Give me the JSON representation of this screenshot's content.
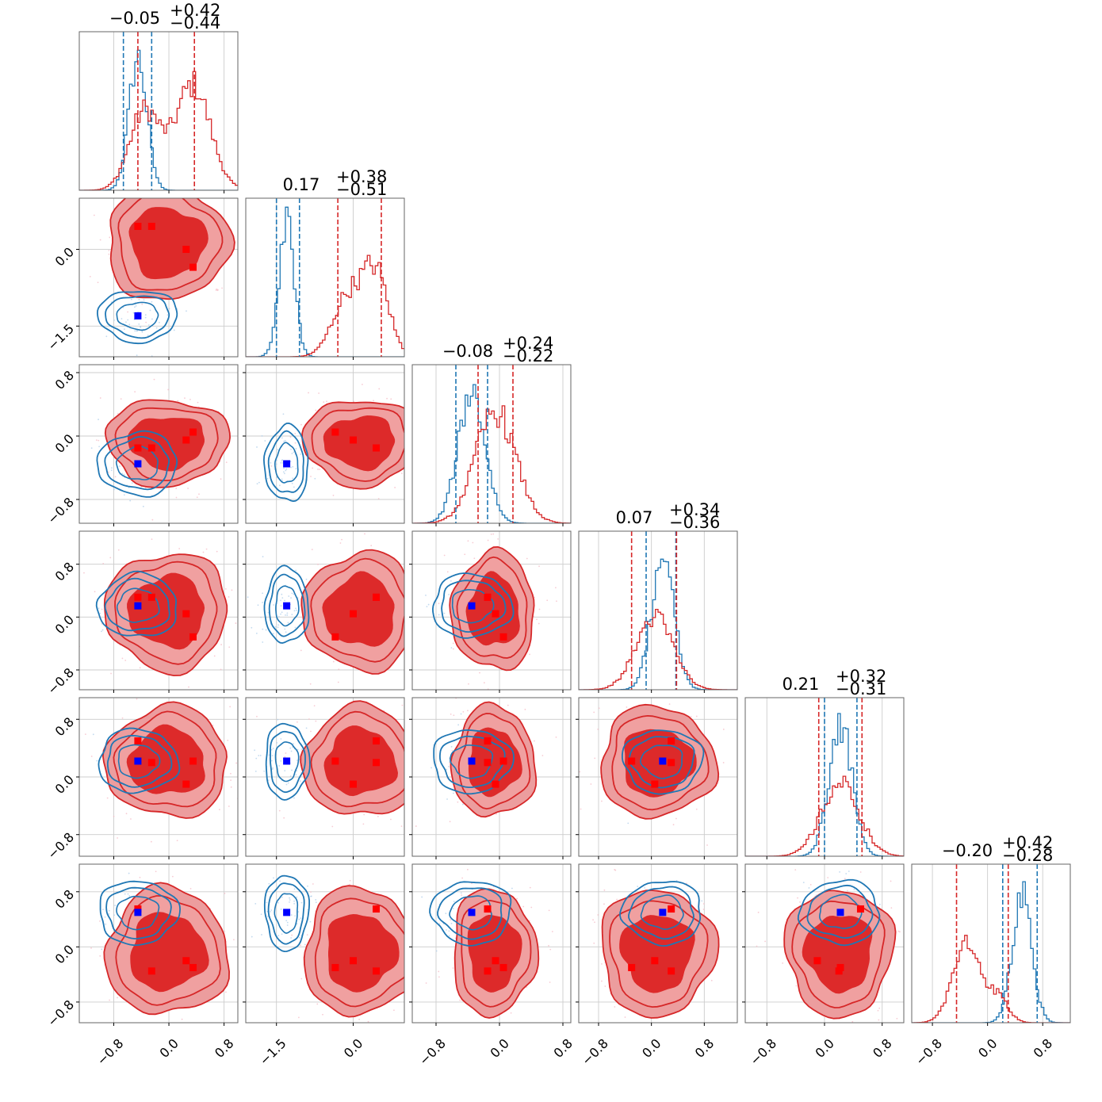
{
  "chart_data": {
    "type": "corner",
    "n_params": 6,
    "grid": true,
    "colors": {
      "blue": "#1f77b4",
      "red": "#d62728",
      "marker_blue": "#0000ff",
      "marker_red": "#ff0000"
    },
    "titles": [
      {
        "value": "−0.05",
        "plus": "+0.42",
        "minus": "−0.44"
      },
      {
        "value": "0.17",
        "plus": "+0.38",
        "minus": "−0.51"
      },
      {
        "value": "−0.08",
        "plus": "+0.24",
        "minus": "−0.22"
      },
      {
        "value": "0.07",
        "plus": "+0.34",
        "minus": "−0.36"
      },
      {
        "value": "0.21",
        "plus": "+0.32",
        "minus": "−0.31"
      },
      {
        "value": "−0.20",
        "plus": "+0.42",
        "minus": "−0.28"
      }
    ],
    "ranges": [
      [
        -1.3,
        1.0
      ],
      [
        -2.1,
        1.0
      ],
      [
        -1.1,
        0.9
      ],
      [
        -1.1,
        1.3
      ],
      [
        -1.1,
        1.1
      ],
      [
        -1.1,
        1.2
      ]
    ],
    "x_ticks": [
      {
        "values": [
          -0.8,
          0.0,
          0.8
        ],
        "labels": [
          "−0.8",
          "0.0",
          "0.8"
        ]
      },
      {
        "values": [
          -1.5,
          0.0
        ],
        "labels": [
          "−1.5",
          "0.0"
        ]
      },
      {
        "values": [
          -0.8,
          0.0,
          0.8
        ],
        "labels": [
          "−0.8",
          "0.0",
          "0.8"
        ]
      },
      {
        "values": [
          -0.8,
          0.0,
          0.8
        ],
        "labels": [
          "−0.8",
          "0.0",
          "0.8"
        ]
      },
      {
        "values": [
          -0.8,
          0.0,
          0.8
        ],
        "labels": [
          "−0.8",
          "0.0",
          "0.8"
        ]
      },
      {
        "values": [
          -0.8,
          0.0,
          0.8
        ],
        "labels": [
          "−0.8",
          "0.0",
          "0.8"
        ]
      }
    ],
    "y_ticks": [
      null,
      {
        "values": [
          0.0,
          -1.5
        ],
        "labels": [
          "0.0",
          "−1.5"
        ]
      },
      {
        "values": [
          0.8,
          0.0,
          -0.8
        ],
        "labels": [
          "0.8",
          "0.0",
          "−0.8"
        ]
      },
      {
        "values": [
          0.8,
          0.0,
          -0.8
        ],
        "labels": [
          "0.8",
          "0.0",
          "−0.8"
        ]
      },
      {
        "values": [
          0.8,
          0.0,
          -0.8
        ],
        "labels": [
          "0.8",
          "0.0",
          "−0.8"
        ]
      },
      {
        "values": [
          0.8,
          0.0,
          -0.8
        ],
        "labels": [
          "0.8",
          "0.0",
          "−0.8"
        ]
      }
    ],
    "blue_truth": [
      -0.45,
      -1.3,
      -0.35,
      0.17,
      0.22,
      0.5
    ],
    "red_points": [
      [
        -0.45,
        -0.25,
        0.25,
        0.35
      ],
      [
        0.45,
        0.45,
        0.0,
        -0.35
      ],
      [
        -0.15,
        -0.15,
        -0.05,
        0.05
      ],
      [
        0.3,
        0.3,
        0.05,
        -0.3
      ],
      [
        0.5,
        0.2,
        -0.1,
        0.22
      ],
      [
        0.55,
        -0.35,
        -0.2,
        -0.3
      ]
    ],
    "blue_quantiles": [
      [
        -0.66,
        -0.25
      ],
      [
        -1.5,
        -1.05
      ],
      [
        -0.55,
        -0.15
      ],
      [
        -0.08,
        0.37
      ],
      [
        0.0,
        0.45
      ],
      [
        0.22,
        0.72
      ]
    ],
    "red_quantiles": [
      [
        -0.45,
        0.37
      ],
      [
        -0.3,
        0.55
      ],
      [
        -0.27,
        0.17
      ],
      [
        -0.3,
        0.38
      ],
      [
        -0.08,
        0.52
      ],
      [
        -0.45,
        0.3
      ]
    ],
    "blue_marginals": [
      {
        "comps": [
          [
            -0.45,
            0.13,
            1.0
          ]
        ]
      },
      {
        "comps": [
          [
            -1.3,
            0.15,
            1.0
          ]
        ]
      },
      {
        "comps": [
          [
            -0.35,
            0.17,
            1.0
          ]
        ]
      },
      {
        "comps": [
          [
            0.17,
            0.17,
            1.0
          ]
        ]
      },
      {
        "comps": [
          [
            0.22,
            0.16,
            1.0
          ]
        ]
      },
      {
        "comps": [
          [
            0.5,
            0.14,
            1.0
          ]
        ]
      }
    ],
    "red_marginals": [
      {
        "comps": [
          [
            -0.35,
            0.22,
            0.6
          ],
          [
            0.35,
            0.25,
            0.8
          ]
        ]
      },
      {
        "comps": [
          [
            -0.1,
            0.3,
            0.45
          ],
          [
            0.45,
            0.25,
            0.6
          ]
        ]
      },
      {
        "comps": [
          [
            -0.05,
            0.25,
            0.85
          ]
        ]
      },
      {
        "comps": [
          [
            0.05,
            0.28,
            0.55
          ]
        ]
      },
      {
        "comps": [
          [
            0.22,
            0.26,
            0.55
          ]
        ]
      },
      {
        "comps": [
          [
            -0.3,
            0.2,
            0.6
          ],
          [
            0.15,
            0.15,
            0.18
          ]
        ]
      }
    ]
  }
}
